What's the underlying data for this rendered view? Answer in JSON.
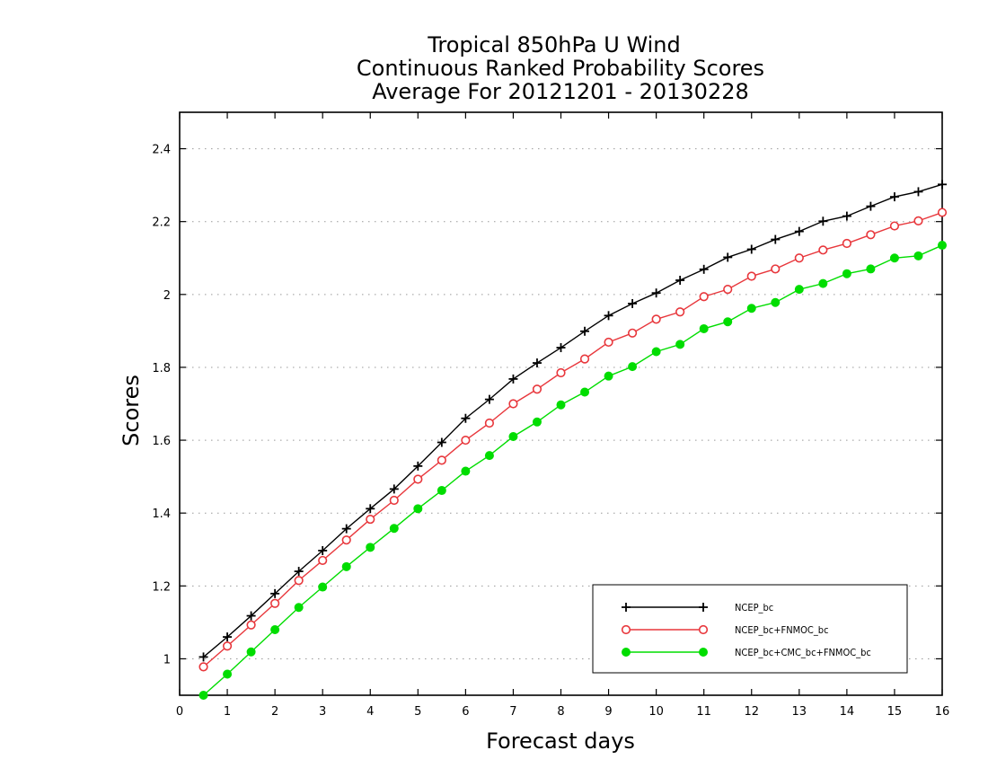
{
  "chart_data": {
    "type": "line",
    "title_lines": [
      "Tropical 850hPa U Wind",
      "Continuous Ranked Probability Scores",
      "Average For 20121201 - 20130228"
    ],
    "xlabel": "Forecast days",
    "ylabel": "Scores",
    "xlim": [
      0,
      16
    ],
    "ylim": [
      0.9,
      2.5
    ],
    "x_ticks": [
      0,
      1,
      2,
      3,
      4,
      5,
      6,
      7,
      8,
      9,
      10,
      11,
      12,
      13,
      14,
      15,
      16
    ],
    "y_ticks": [
      1,
      1.2,
      1.4,
      1.6,
      1.8,
      2,
      2.2,
      2.4
    ],
    "y_tick_labels": [
      "1",
      "1.2",
      "1.4",
      "1.6",
      "1.8",
      "2",
      "2.2",
      "2.4"
    ],
    "grid": "horizontal dotted",
    "legend_position": "bottom-right",
    "x": [
      0.5,
      1,
      1.5,
      2,
      2.5,
      3,
      3.5,
      4,
      4.5,
      5,
      5.5,
      6,
      6.5,
      7,
      7.5,
      8,
      8.5,
      9,
      9.5,
      10,
      10.5,
      11,
      11.5,
      12,
      12.5,
      13,
      13.5,
      14,
      14.5,
      15,
      15.5,
      16
    ],
    "series": [
      {
        "name": "NCEP_bc",
        "color": "#000000",
        "marker": "plus",
        "values": [
          1.005,
          1.06,
          1.118,
          1.179,
          1.24,
          1.297,
          1.357,
          1.412,
          1.466,
          1.529,
          1.594,
          1.66,
          1.712,
          1.768,
          1.812,
          1.854,
          1.899,
          1.942,
          1.975,
          2.004,
          2.039,
          2.069,
          2.102,
          2.124,
          2.151,
          2.173,
          2.201,
          2.215,
          2.242,
          2.268,
          2.282,
          2.302
        ]
      },
      {
        "name": "NCEP_bc+FNMOC_bc",
        "color": "#e8373c",
        "marker": "circle-open",
        "values": [
          0.978,
          1.035,
          1.093,
          1.152,
          1.215,
          1.27,
          1.326,
          1.383,
          1.435,
          1.493,
          1.545,
          1.6,
          1.647,
          1.7,
          1.74,
          1.785,
          1.823,
          1.869,
          1.894,
          1.932,
          1.952,
          1.994,
          2.014,
          2.05,
          2.07,
          2.1,
          2.122,
          2.14,
          2.164,
          2.188,
          2.202,
          2.225
        ]
      },
      {
        "name": "NCEP_bc+CMC_bc+FNMOC_bc",
        "color": "#00dd00",
        "marker": "circle-filled",
        "values": [
          0.9,
          0.958,
          1.019,
          1.08,
          1.141,
          1.197,
          1.253,
          1.306,
          1.358,
          1.412,
          1.462,
          1.515,
          1.558,
          1.61,
          1.65,
          1.697,
          1.732,
          1.776,
          1.802,
          1.843,
          1.863,
          1.906,
          1.925,
          1.962,
          1.978,
          2.014,
          2.03,
          2.057,
          2.07,
          2.1,
          2.106,
          2.135
        ]
      }
    ]
  }
}
